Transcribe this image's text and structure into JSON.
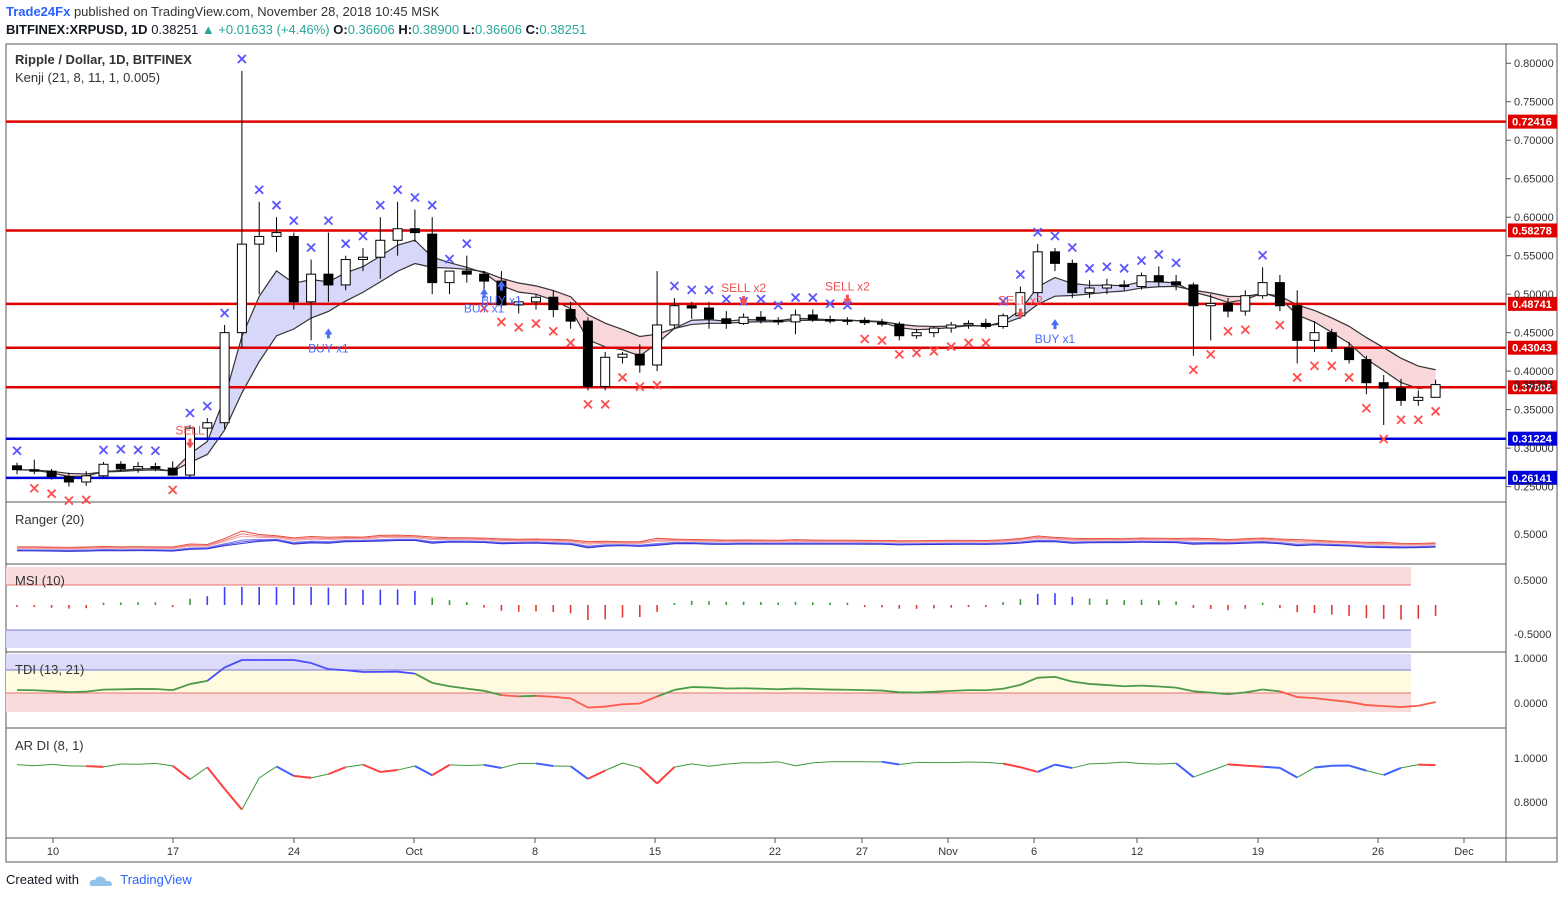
{
  "header": {
    "brand": "Trade24Fx",
    "published": "published on TradingView.com, November 28, 2018 10:45 MSK",
    "symbol": "BITFINEX:XRPUSD, 1D",
    "last": "0.38251",
    "change": "+0.01633 (+4.46%)",
    "o_label": "O:",
    "o": "0.36606",
    "h_label": "H:",
    "h": "0.38900",
    "l_label": "L:",
    "l": "0.36606",
    "c_label": "C:",
    "c": "0.38251"
  },
  "footer": {
    "created": "Created with",
    "brand": "TradingView"
  },
  "colors": {
    "up": "#ffffff",
    "down": "#000000",
    "red_level": "#e00000",
    "blue_level": "#0000dd",
    "cross_red": "#ff4d4d",
    "cross_blue": "#5a55ff",
    "signal_red": "#f05050",
    "signal_blue": "#4a6cf7"
  },
  "chart_data": {
    "type": "candlestick",
    "title": "Ripple / Dollar, 1D, BITFINEX",
    "indicator": "Kenji (21, 8, 11, 1, 0.005)",
    "x_ticks": [
      "10",
      "17",
      "24",
      "Oct",
      "8",
      "15",
      "22",
      "27",
      "Nov",
      "6",
      "12",
      "19",
      "26",
      "Dec"
    ],
    "y_ticks": [
      "0.80000",
      "0.75000",
      "0.70000",
      "0.65000",
      "0.60000",
      "0.55000",
      "0.50000",
      "0.45000",
      "0.40000",
      "0.35000",
      "0.30000",
      "0.25000"
    ],
    "y_range": [
      0.23,
      0.825
    ],
    "levels": [
      {
        "label": "0.72416",
        "value": 0.72416,
        "color": "red"
      },
      {
        "label": "0.58278",
        "value": 0.58278,
        "color": "red"
      },
      {
        "label": "0.48741",
        "value": 0.48741,
        "color": "red"
      },
      {
        "label": "0.43043",
        "value": 0.43043,
        "color": "red"
      },
      {
        "label": "0.37906",
        "value": 0.37906,
        "color": "red"
      },
      {
        "label": "0.31224",
        "value": 0.31224,
        "color": "blue"
      },
      {
        "label": "0.26141",
        "value": 0.26141,
        "color": "blue"
      }
    ],
    "last_price_label": "0.38251",
    "ohlc": [
      [
        0.277,
        0.281,
        0.266,
        0.272
      ],
      [
        0.272,
        0.285,
        0.266,
        0.27
      ],
      [
        0.27,
        0.273,
        0.259,
        0.263
      ],
      [
        0.263,
        0.268,
        0.25,
        0.256
      ],
      [
        0.256,
        0.27,
        0.251,
        0.264
      ],
      [
        0.264,
        0.282,
        0.26,
        0.279
      ],
      [
        0.279,
        0.283,
        0.27,
        0.273
      ],
      [
        0.273,
        0.282,
        0.268,
        0.276
      ],
      [
        0.276,
        0.281,
        0.27,
        0.274
      ],
      [
        0.274,
        0.283,
        0.264,
        0.265
      ],
      [
        0.265,
        0.33,
        0.262,
        0.326
      ],
      [
        0.326,
        0.339,
        0.311,
        0.333
      ],
      [
        0.333,
        0.46,
        0.325,
        0.45
      ],
      [
        0.45,
        0.79,
        0.43,
        0.565
      ],
      [
        0.565,
        0.62,
        0.5,
        0.575
      ],
      [
        0.575,
        0.6,
        0.555,
        0.58
      ],
      [
        0.575,
        0.58,
        0.48,
        0.49
      ],
      [
        0.49,
        0.545,
        0.44,
        0.526
      ],
      [
        0.526,
        0.58,
        0.49,
        0.512
      ],
      [
        0.512,
        0.55,
        0.505,
        0.545
      ],
      [
        0.545,
        0.56,
        0.53,
        0.548
      ],
      [
        0.548,
        0.6,
        0.52,
        0.57
      ],
      [
        0.57,
        0.62,
        0.55,
        0.585
      ],
      [
        0.585,
        0.61,
        0.568,
        0.58
      ],
      [
        0.578,
        0.6,
        0.5,
        0.515
      ],
      [
        0.515,
        0.53,
        0.5,
        0.53
      ],
      [
        0.53,
        0.55,
        0.515,
        0.526
      ],
      [
        0.526,
        0.53,
        0.5,
        0.517
      ],
      [
        0.517,
        0.53,
        0.482,
        0.486
      ],
      [
        0.486,
        0.495,
        0.475,
        0.49
      ],
      [
        0.49,
        0.5,
        0.48,
        0.496
      ],
      [
        0.496,
        0.505,
        0.47,
        0.48
      ],
      [
        0.48,
        0.49,
        0.455,
        0.465
      ],
      [
        0.465,
        0.47,
        0.375,
        0.38
      ],
      [
        0.38,
        0.425,
        0.375,
        0.418
      ],
      [
        0.418,
        0.425,
        0.41,
        0.422
      ],
      [
        0.422,
        0.435,
        0.398,
        0.408
      ],
      [
        0.408,
        0.53,
        0.4,
        0.46
      ],
      [
        0.46,
        0.495,
        0.455,
        0.485
      ],
      [
        0.485,
        0.49,
        0.468,
        0.482
      ],
      [
        0.482,
        0.49,
        0.455,
        0.468
      ],
      [
        0.468,
        0.478,
        0.455,
        0.462
      ],
      [
        0.462,
        0.475,
        0.46,
        0.47
      ],
      [
        0.47,
        0.478,
        0.462,
        0.466
      ],
      [
        0.466,
        0.47,
        0.46,
        0.464
      ],
      [
        0.464,
        0.48,
        0.448,
        0.473
      ],
      [
        0.473,
        0.48,
        0.464,
        0.467
      ],
      [
        0.467,
        0.472,
        0.462,
        0.465
      ],
      [
        0.465,
        0.47,
        0.46,
        0.466
      ],
      [
        0.466,
        0.47,
        0.46,
        0.463
      ],
      [
        0.463,
        0.468,
        0.458,
        0.461
      ],
      [
        0.461,
        0.464,
        0.44,
        0.446
      ],
      [
        0.446,
        0.455,
        0.442,
        0.45
      ],
      [
        0.45,
        0.458,
        0.444,
        0.456
      ],
      [
        0.456,
        0.464,
        0.45,
        0.46
      ],
      [
        0.46,
        0.466,
        0.455,
        0.462
      ],
      [
        0.462,
        0.468,
        0.455,
        0.458
      ],
      [
        0.458,
        0.475,
        0.455,
        0.472
      ],
      [
        0.472,
        0.51,
        0.468,
        0.502
      ],
      [
        0.502,
        0.565,
        0.49,
        0.555
      ],
      [
        0.555,
        0.56,
        0.53,
        0.54
      ],
      [
        0.54,
        0.545,
        0.495,
        0.502
      ],
      [
        0.502,
        0.518,
        0.495,
        0.508
      ],
      [
        0.508,
        0.52,
        0.5,
        0.512
      ],
      [
        0.512,
        0.518,
        0.505,
        0.51
      ],
      [
        0.51,
        0.528,
        0.506,
        0.524
      ],
      [
        0.524,
        0.536,
        0.51,
        0.516
      ],
      [
        0.516,
        0.525,
        0.505,
        0.512
      ],
      [
        0.512,
        0.515,
        0.42,
        0.485
      ],
      [
        0.485,
        0.5,
        0.44,
        0.488
      ],
      [
        0.488,
        0.495,
        0.47,
        0.478
      ],
      [
        0.478,
        0.505,
        0.472,
        0.498
      ],
      [
        0.498,
        0.535,
        0.494,
        0.515
      ],
      [
        0.515,
        0.525,
        0.478,
        0.485
      ],
      [
        0.485,
        0.505,
        0.41,
        0.44
      ],
      [
        0.44,
        0.465,
        0.425,
        0.45
      ],
      [
        0.45,
        0.455,
        0.425,
        0.43
      ],
      [
        0.43,
        0.438,
        0.41,
        0.415
      ],
      [
        0.415,
        0.42,
        0.37,
        0.385
      ],
      [
        0.385,
        0.395,
        0.33,
        0.378
      ],
      [
        0.378,
        0.39,
        0.355,
        0.362
      ],
      [
        0.362,
        0.375,
        0.355,
        0.366
      ],
      [
        0.366,
        0.389,
        0.366,
        0.3825
      ]
    ],
    "signals": [
      {
        "label": "SELL",
        "type": "sell",
        "bar": 10,
        "y": 0.315
      },
      {
        "label": "BUY x1",
        "type": "buy",
        "bar": 18,
        "y": 0.44
      },
      {
        "label": "BUY x1",
        "type": "buy",
        "bar": 27,
        "y": 0.492
      },
      {
        "label": "BUY x1",
        "type": "buy",
        "bar": 28,
        "y": 0.502
      },
      {
        "label": "SELL x2",
        "type": "sell",
        "bar": 42,
        "y": 0.5
      },
      {
        "label": "SELL x2",
        "type": "sell",
        "bar": 48,
        "y": 0.502
      },
      {
        "label": "SELL x2",
        "type": "sell",
        "bar": 58,
        "y": 0.484
      },
      {
        "label": "BUY x1",
        "type": "buy",
        "bar": 60,
        "y": 0.452
      }
    ],
    "sub_panels": [
      {
        "name": "Ranger (20)",
        "ticks": [
          "0.5000"
        ]
      },
      {
        "name": "MSI (10)",
        "ticks": [
          "0.5000",
          "-0.5000"
        ]
      },
      {
        "name": "TDI (13, 21)",
        "ticks": [
          "1.0000",
          "0.0000"
        ]
      },
      {
        "name": "AR DI (8, 1)",
        "ticks": [
          "1.0000",
          "0.8000"
        ]
      }
    ]
  }
}
